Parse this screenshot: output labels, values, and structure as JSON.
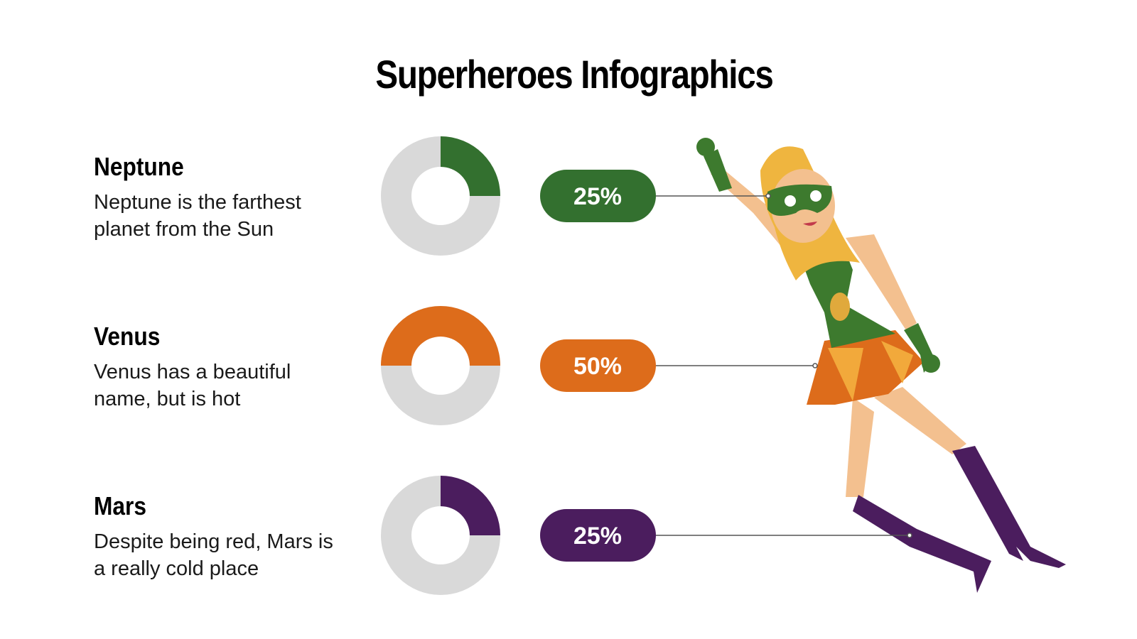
{
  "header": {
    "title": "Superheroes Infographics"
  },
  "chart_data": [
    {
      "type": "donut",
      "title": "Neptune",
      "subtitle": "Neptune is the farthest planet from the Sun",
      "values": [
        25
      ],
      "value_labels": [
        "25%"
      ],
      "color": "#33702f",
      "track_color": "#d9d9d9"
    },
    {
      "type": "donut",
      "title": "Venus",
      "subtitle": "Venus has a beautiful name, but is hot",
      "values": [
        50
      ],
      "value_labels": [
        "50%"
      ],
      "color": "#dd6c1b",
      "track_color": "#d9d9d9"
    },
    {
      "type": "donut",
      "title": "Mars",
      "subtitle": "Despite being red, Mars is a really cold place",
      "values": [
        25
      ],
      "value_labels": [
        "25%"
      ],
      "color": "#4b1d5e",
      "track_color": "#d9d9d9"
    }
  ]
}
